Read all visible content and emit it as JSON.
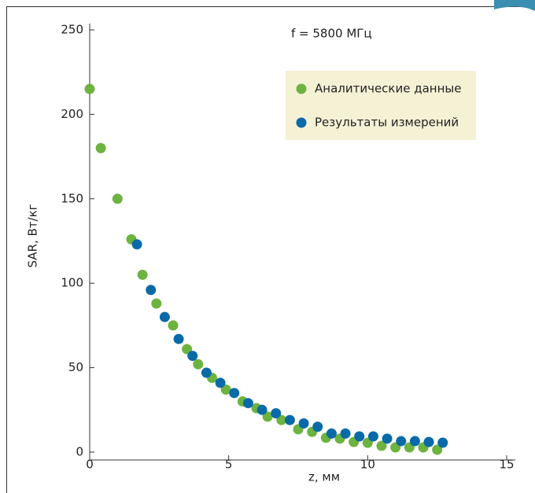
{
  "chart_data": {
    "type": "scatter",
    "annotation": "f = 5800 МГц",
    "x_label": "z, мм",
    "y_label": "SAR, Вт/кг",
    "xlim": [
      0,
      15
    ],
    "xticks": [
      0,
      5,
      10,
      15
    ],
    "ylim": [
      0,
      250
    ],
    "yticks": [
      0,
      50,
      100,
      150,
      200,
      250
    ],
    "legend": "upper-right",
    "series": [
      {
        "name": "Аналитические данные",
        "color": "#6db33f",
        "x": [
          0,
          0.4,
          1.0,
          1.5,
          1.9,
          2.4,
          3.0,
          3.5,
          3.9,
          4.4,
          4.9,
          5.5,
          6.0,
          6.4,
          6.9,
          7.5,
          8.0,
          8.5,
          9.0,
          9.5,
          10.0,
          10.5,
          11.0,
          11.5,
          12.0,
          12.5
        ],
        "values": [
          215,
          180,
          150,
          126,
          105,
          88,
          75,
          61,
          52,
          44,
          37,
          30,
          26,
          21,
          19,
          13.5,
          12,
          8.5,
          8,
          6,
          5.5,
          3.7,
          2.8,
          2.8,
          2.8,
          1.4
        ]
      },
      {
        "name": "Результаты измерений",
        "color": "#0a6aa8",
        "x": [
          1.7,
          2.2,
          2.7,
          3.2,
          3.7,
          4.2,
          4.7,
          5.2,
          5.7,
          6.2,
          6.7,
          7.2,
          7.7,
          8.2,
          8.7,
          9.2,
          9.7,
          10.2,
          10.7,
          11.2,
          11.7,
          12.2,
          12.7
        ],
        "values": [
          123,
          96,
          80,
          67,
          57,
          47,
          41,
          35,
          29,
          25,
          23,
          19,
          17,
          15,
          11,
          11,
          9.3,
          9.3,
          8,
          6.5,
          6.5,
          6,
          5.6
        ]
      }
    ]
  }
}
